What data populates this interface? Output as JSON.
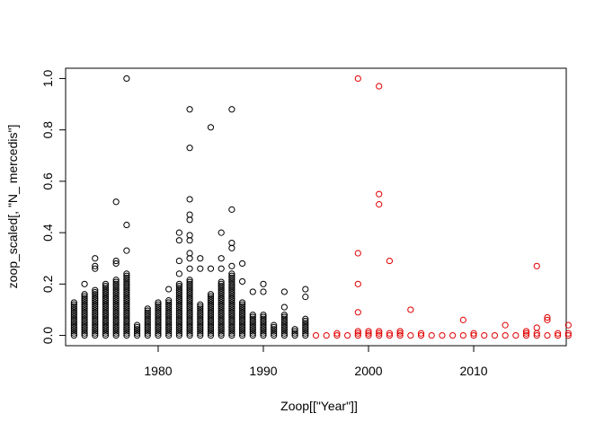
{
  "chart_data": {
    "type": "scatter",
    "title": "",
    "xlabel": "Zoop[[\"Year\"]]",
    "ylabel": "zoop_scaled[, \"N_ mercedis\"]",
    "xlim": [
      1971.2,
      2018.8
    ],
    "ylim": [
      -0.04,
      1.04
    ],
    "x_ticks": [
      1980,
      1990,
      2000,
      2010
    ],
    "y_ticks": [
      0.0,
      0.2,
      0.4,
      0.6,
      0.8,
      1.0
    ],
    "x_tick_labels": [
      "1980",
      "1990",
      "2000",
      "2010"
    ],
    "y_tick_labels": [
      "0.0",
      "0.2",
      "0.4",
      "0.6",
      "0.8",
      "1.0"
    ],
    "grid": false,
    "legend": "none",
    "series": [
      {
        "color": "#000000",
        "marker": "open-circle",
        "columns": [
          {
            "x": 1972,
            "max": 0.13,
            "extra": []
          },
          {
            "x": 1973,
            "max": 0.16,
            "extra": [
              0.2
            ]
          },
          {
            "x": 1974,
            "max": 0.18,
            "extra": [
              0.26,
              0.27,
              0.3
            ]
          },
          {
            "x": 1975,
            "max": 0.2,
            "extra": []
          },
          {
            "x": 1976,
            "max": 0.22,
            "extra": [
              0.28,
              0.29,
              0.52
            ]
          },
          {
            "x": 1977,
            "max": 0.24,
            "extra": [
              0.33,
              0.43,
              1.0
            ]
          },
          {
            "x": 1978,
            "max": 0.04,
            "extra": []
          },
          {
            "x": 1979,
            "max": 0.11,
            "extra": []
          },
          {
            "x": 1980,
            "max": 0.13,
            "extra": []
          },
          {
            "x": 1981,
            "max": 0.14,
            "extra": [
              0.18
            ]
          },
          {
            "x": 1982,
            "max": 0.2,
            "extra": [
              0.24,
              0.29,
              0.37,
              0.4
            ]
          },
          {
            "x": 1983,
            "max": 0.22,
            "extra": [
              0.26,
              0.3,
              0.32,
              0.37,
              0.39,
              0.45,
              0.47,
              0.53,
              0.73,
              0.88
            ]
          },
          {
            "x": 1984,
            "max": 0.12,
            "extra": [
              0.26,
              0.3
            ]
          },
          {
            "x": 1985,
            "max": 0.16,
            "extra": [
              0.26,
              0.81
            ]
          },
          {
            "x": 1986,
            "max": 0.21,
            "extra": [
              0.26,
              0.3,
              0.4
            ]
          },
          {
            "x": 1987,
            "max": 0.24,
            "extra": [
              0.27,
              0.34,
              0.36,
              0.49,
              0.88
            ]
          },
          {
            "x": 1988,
            "max": 0.13,
            "extra": [
              0.21,
              0.28
            ]
          },
          {
            "x": 1989,
            "max": 0.08,
            "extra": [
              0.17
            ]
          },
          {
            "x": 1990,
            "max": 0.08,
            "extra": [
              0.17,
              0.2
            ]
          },
          {
            "x": 1991,
            "max": 0.04,
            "extra": []
          },
          {
            "x": 1992,
            "max": 0.08,
            "extra": [
              0.11,
              0.17
            ]
          },
          {
            "x": 1993,
            "max": 0.03,
            "extra": []
          },
          {
            "x": 1994,
            "max": 0.07,
            "extra": [
              0.15,
              0.18
            ]
          }
        ]
      },
      {
        "color": "#e00000",
        "marker": "open-circle",
        "columns": [
          {
            "x": 1995,
            "max": 0.0,
            "extra": []
          },
          {
            "x": 1996,
            "max": 0.0,
            "extra": []
          },
          {
            "x": 1997,
            "max": 0.01,
            "extra": []
          },
          {
            "x": 1998,
            "max": 0.0,
            "extra": []
          },
          {
            "x": 1999,
            "max": 0.02,
            "extra": [
              0.09,
              0.2,
              0.32,
              1.0
            ]
          },
          {
            "x": 2000,
            "max": 0.02,
            "extra": []
          },
          {
            "x": 2001,
            "max": 0.02,
            "extra": [
              0.51,
              0.55,
              0.97
            ]
          },
          {
            "x": 2002,
            "max": 0.01,
            "extra": [
              0.29
            ]
          },
          {
            "x": 2003,
            "max": 0.02,
            "extra": []
          },
          {
            "x": 2004,
            "max": 0.0,
            "extra": [
              0.1
            ]
          },
          {
            "x": 2005,
            "max": 0.01,
            "extra": []
          },
          {
            "x": 2006,
            "max": 0.0,
            "extra": []
          },
          {
            "x": 2007,
            "max": 0.0,
            "extra": []
          },
          {
            "x": 2008,
            "max": 0.0,
            "extra": []
          },
          {
            "x": 2009,
            "max": 0.0,
            "extra": [
              0.06
            ]
          },
          {
            "x": 2010,
            "max": 0.01,
            "extra": []
          },
          {
            "x": 2011,
            "max": 0.0,
            "extra": []
          },
          {
            "x": 2012,
            "max": 0.0,
            "extra": []
          },
          {
            "x": 2013,
            "max": 0.0,
            "extra": [
              0.04
            ]
          },
          {
            "x": 2014,
            "max": 0.0,
            "extra": []
          },
          {
            "x": 2015,
            "max": 0.02,
            "extra": []
          },
          {
            "x": 2016,
            "max": 0.01,
            "extra": [
              0.03,
              0.27
            ]
          },
          {
            "x": 2017,
            "max": 0.0,
            "extra": [
              0.06,
              0.07
            ]
          },
          {
            "x": 2018,
            "max": 0.01,
            "extra": []
          },
          {
            "x": 2019,
            "max": 0.01,
            "extra": [
              0.04
            ]
          }
        ]
      }
    ]
  }
}
